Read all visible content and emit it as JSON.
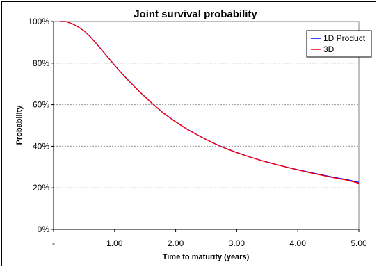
{
  "chart_data": {
    "type": "line",
    "title": "Joint survival probability",
    "xlabel": "Time to maturity (years)",
    "ylabel": "Probability",
    "xlim": [
      0,
      5
    ],
    "ylim": [
      0,
      1
    ],
    "x_tick_labels": [
      "-",
      "1.00",
      "2.00",
      "3.00",
      "4.00",
      "5.00"
    ],
    "y_tick_labels": [
      "0%",
      "20%",
      "40%",
      "60%",
      "80%",
      "100%"
    ],
    "grid": "horizontal dashed",
    "legend_position": "top-right",
    "series": [
      {
        "name": "1D Product",
        "color": "#0000ff",
        "x": [
          0.1,
          0.2,
          0.3,
          0.4,
          0.5,
          0.6,
          0.7,
          0.8,
          1.0,
          1.2,
          1.4,
          1.6,
          1.8,
          2.0,
          2.2,
          2.4,
          2.6,
          2.8,
          3.0,
          3.2,
          3.4,
          3.6,
          3.8,
          4.0,
          4.2,
          4.4,
          4.6,
          4.8,
          5.0
        ],
        "y": [
          1.0,
          1.0,
          0.99,
          0.975,
          0.955,
          0.928,
          0.895,
          0.86,
          0.79,
          0.725,
          0.665,
          0.61,
          0.56,
          0.518,
          0.48,
          0.448,
          0.418,
          0.392,
          0.37,
          0.35,
          0.332,
          0.316,
          0.301,
          0.287,
          0.274,
          0.262,
          0.25,
          0.24,
          0.226
        ]
      },
      {
        "name": "3D",
        "color": "#ff0000",
        "x": [
          0.1,
          0.2,
          0.3,
          0.4,
          0.5,
          0.6,
          0.7,
          0.8,
          1.0,
          1.2,
          1.4,
          1.6,
          1.8,
          2.0,
          2.2,
          2.4,
          2.6,
          2.8,
          3.0,
          3.2,
          3.4,
          3.6,
          3.8,
          4.0,
          4.2,
          4.4,
          4.6,
          4.8,
          5.0
        ],
        "y": [
          1.0,
          1.0,
          0.99,
          0.975,
          0.955,
          0.927,
          0.894,
          0.859,
          0.789,
          0.724,
          0.664,
          0.609,
          0.559,
          0.517,
          0.479,
          0.447,
          0.417,
          0.391,
          0.369,
          0.349,
          0.331,
          0.315,
          0.3,
          0.286,
          0.272,
          0.26,
          0.248,
          0.237,
          0.222
        ]
      }
    ]
  }
}
